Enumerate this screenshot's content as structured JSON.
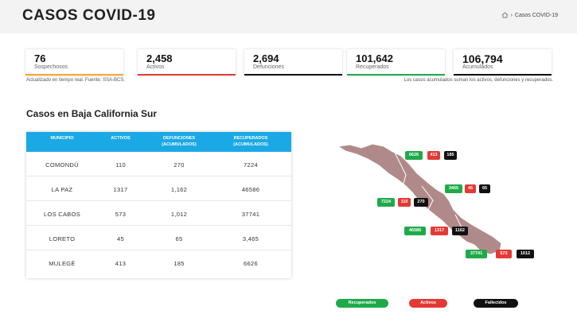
{
  "header": {
    "title": "CASOS COVID-19",
    "breadcrumb": "Casos COVID-19"
  },
  "cards": [
    {
      "value": "76",
      "label": "Sospechosos"
    },
    {
      "value": "2,458",
      "label": "Activos"
    },
    {
      "value": "2,694",
      "label": "Defunciones"
    },
    {
      "value": "101,642",
      "label": "Recuperados"
    },
    {
      "value": "106,794",
      "label": "Acumulados"
    }
  ],
  "notes": {
    "left": "Actualizado en tiempo real. Fuente: SSA-BCS.",
    "right": "Los casos acumulados suman los activos, defunciones y recuperados."
  },
  "section": {
    "title": "Casos en Baja California Sur"
  },
  "table": {
    "headers": {
      "municipio": "MUNICIPIO",
      "activos": "ACTIVOS",
      "defunciones_1": "DEFUNCIONES",
      "defunciones_2": "(ACUMULADOS)",
      "recuperados_1": "RECUPERADOS",
      "recuperados_2": "(ACUMULADOS)"
    },
    "rows": [
      {
        "municipio": "COMONDÚ",
        "activos": "110",
        "defunciones": "270",
        "recuperados": "7224"
      },
      {
        "municipio": "LA PAZ",
        "activos": "1317",
        "defunciones": "1,162",
        "recuperados": "46586"
      },
      {
        "municipio": "LOS CABOS",
        "activos": "573",
        "defunciones": "1,012",
        "recuperados": "37741"
      },
      {
        "municipio": "LORETO",
        "activos": "45",
        "defunciones": "65",
        "recuperados": "3,465"
      },
      {
        "municipio": "MULEGÉ",
        "activos": "413",
        "defunciones": "185",
        "recuperados": "6626"
      }
    ]
  },
  "map": {
    "fill_color": "#b08a8a",
    "badges": {
      "mulege": {
        "recuperados": "6626",
        "activos": "413",
        "fallecidos": "185"
      },
      "loreto": {
        "recuperados": "3465",
        "activos": "45",
        "fallecidos": "65"
      },
      "comondu": {
        "recuperados": "7224",
        "activos": "110",
        "fallecidos": "270"
      },
      "lapaz": {
        "recuperados": "46586",
        "activos": "1317",
        "fallecidos": "1162"
      },
      "loscabos": {
        "recuperados": "37741",
        "activos": "573",
        "fallecidos": "1012"
      }
    }
  },
  "legend": {
    "recuperados": "Recuperados",
    "activos": "Activos",
    "fallecidos": "Fallecidos"
  },
  "colors": {
    "recuperados": "#1faa4a",
    "activos": "#e53935",
    "fallecidos": "#111111",
    "table_header": "#1ba9e6"
  },
  "icons": {
    "breadcrumb_home": "home-icon"
  }
}
